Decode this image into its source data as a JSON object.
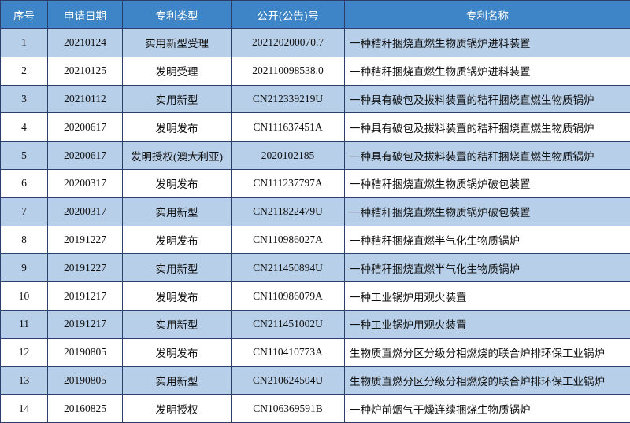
{
  "table": {
    "header": [
      "序号",
      "申请日期",
      "专利类型",
      "公开(公告)号",
      "专利名称"
    ],
    "rows": [
      [
        "1",
        "20210124",
        "实用新型受理",
        "202120200070.7",
        "一种秸秆捆烧直燃生物质锅炉进料装置"
      ],
      [
        "2",
        "20210125",
        "发明受理",
        "202110098538.0",
        "一种秸秆捆烧直燃生物质锅炉进料装置"
      ],
      [
        "3",
        "20210112",
        "实用新型",
        "CN212339219U",
        "一种具有破包及拔料装置的秸秆捆烧直燃生物质锅炉"
      ],
      [
        "4",
        "20200617",
        "发明发布",
        "CN111637451A",
        "一种具有破包及拔料装置的秸秆捆烧直燃生物质锅炉"
      ],
      [
        "5",
        "20200617",
        "发明授权(澳大利亚)",
        "2020102185",
        "一种具有破包及拔料装置的秸秆捆烧直燃生物质锅炉"
      ],
      [
        "6",
        "20200317",
        "发明发布",
        "CN111237797A",
        "一种秸秆捆烧直燃生物质锅炉破包装置"
      ],
      [
        "7",
        "20200317",
        "实用新型",
        "CN211822479U",
        "一种秸秆捆烧直燃生物质锅炉破包装置"
      ],
      [
        "8",
        "20191227",
        "发明发布",
        "CN110986027A",
        "一种秸秆捆烧直燃半气化生物质锅炉"
      ],
      [
        "9",
        "20191227",
        "实用新型",
        "CN211450894U",
        "一种秸秆捆烧直燃半气化生物质锅炉"
      ],
      [
        "10",
        "20191217",
        "发明发布",
        "CN110986079A",
        "一种工业锅炉用观火装置"
      ],
      [
        "11",
        "20191217",
        "实用新型",
        "CN211451002U",
        "一种工业锅炉用观火装置"
      ],
      [
        "12",
        "20190805",
        "发明发布",
        "CN110410773A",
        "生物质直燃分区分级分相燃烧的联合炉排环保工业锅炉"
      ],
      [
        "13",
        "20190805",
        "实用新型",
        "CN210624504U",
        "生物质直燃分区分级分相燃烧的联合炉排环保工业锅炉"
      ],
      [
        "14",
        "20160825",
        "发明授权",
        "CN106369591B",
        "一种炉前烟气干燥连续捆烧生物质锅炉"
      ]
    ]
  }
}
